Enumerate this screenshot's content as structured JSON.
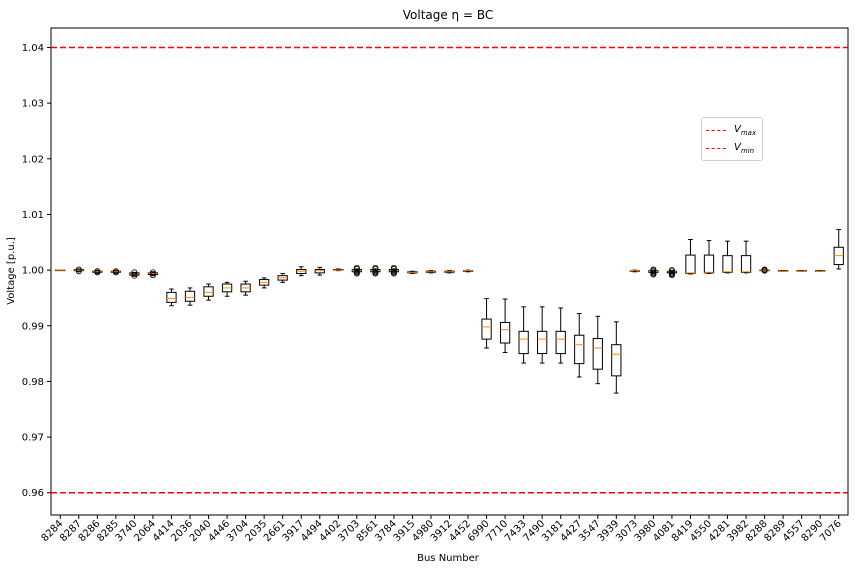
{
  "chart_data": {
    "type": "box",
    "title": "Voltage η = BC",
    "xlabel": "Bus Number",
    "ylabel": "Voltage [p.u.]",
    "ylim": [
      0.956,
      1.0435
    ],
    "yticks": [
      0.96,
      0.97,
      0.98,
      0.99,
      1.0,
      1.01,
      1.02,
      1.03,
      1.04
    ],
    "ytick_labels": [
      "0.96",
      "0.97",
      "0.98",
      "0.99",
      "1.00",
      "1.01",
      "1.02",
      "1.03",
      "1.04"
    ],
    "reference_lines": [
      {
        "name": "V_max",
        "value": 1.04,
        "color": "#ff0000",
        "style": "dashed"
      },
      {
        "name": "V_min",
        "value": 0.96,
        "color": "#ff0000",
        "style": "dashed"
      }
    ],
    "legend": {
      "position": "upper-right",
      "entries": [
        {
          "base": "V",
          "sub": "max"
        },
        {
          "base": "V",
          "sub": "min"
        }
      ]
    },
    "median_color": "#ff8c00",
    "buses": [
      {
        "label": "8284",
        "q1": 1.0,
        "med": 1.0,
        "q3": 1.0,
        "lo": 1.0,
        "hi": 1.0,
        "fliers": []
      },
      {
        "label": "8287",
        "q1": 0.9999,
        "med": 1.0,
        "q3": 1.0001,
        "lo": 0.9998,
        "hi": 1.0002,
        "fliers": [
          0.9998,
          1.0001
        ]
      },
      {
        "label": "8286",
        "q1": 0.9996,
        "med": 0.9997,
        "q3": 0.9998,
        "lo": 0.9995,
        "hi": 0.9999,
        "fliers": [
          0.9996,
          0.9998
        ]
      },
      {
        "label": "8285",
        "q1": 0.9996,
        "med": 0.9997,
        "q3": 0.9998,
        "lo": 0.9995,
        "hi": 0.9999,
        "fliers": [
          0.9996,
          0.9998
        ]
      },
      {
        "label": "3740",
        "q1": 0.9991,
        "med": 0.9993,
        "q3": 0.9995,
        "lo": 0.9989,
        "hi": 0.9996,
        "fliers": [
          0.999,
          0.9996
        ]
      },
      {
        "label": "2064",
        "q1": 0.9992,
        "med": 0.9994,
        "q3": 0.9995,
        "lo": 0.999,
        "hi": 0.9997,
        "fliers": [
          0.9991,
          0.9996
        ]
      },
      {
        "label": "4414",
        "q1": 0.9942,
        "med": 0.9949,
        "q3": 0.996,
        "lo": 0.9936,
        "hi": 0.9966,
        "fliers": []
      },
      {
        "label": "2036",
        "q1": 0.9944,
        "med": 0.9951,
        "q3": 0.9962,
        "lo": 0.9937,
        "hi": 0.9968,
        "fliers": []
      },
      {
        "label": "2040",
        "q1": 0.9953,
        "med": 0.996,
        "q3": 0.997,
        "lo": 0.9946,
        "hi": 0.9975,
        "fliers": []
      },
      {
        "label": "4446",
        "q1": 0.9961,
        "med": 0.9968,
        "q3": 0.9975,
        "lo": 0.9953,
        "hi": 0.9978,
        "fliers": []
      },
      {
        "label": "3704",
        "q1": 0.9961,
        "med": 0.9968,
        "q3": 0.9975,
        "lo": 0.9955,
        "hi": 0.998,
        "fliers": []
      },
      {
        "label": "2035",
        "q1": 0.9973,
        "med": 0.9978,
        "q3": 0.9983,
        "lo": 0.9968,
        "hi": 0.9986,
        "fliers": []
      },
      {
        "label": "2661",
        "q1": 0.9982,
        "med": 0.9986,
        "q3": 0.999,
        "lo": 0.9978,
        "hi": 0.9994,
        "fliers": []
      },
      {
        "label": "3917",
        "q1": 0.9994,
        "med": 0.9998,
        "q3": 1.0001,
        "lo": 0.999,
        "hi": 1.0006,
        "fliers": []
      },
      {
        "label": "4494",
        "q1": 0.9995,
        "med": 0.9999,
        "q3": 1.0001,
        "lo": 0.9991,
        "hi": 1.0005,
        "fliers": []
      },
      {
        "label": "4402",
        "q1": 1.0,
        "med": 1.0,
        "q3": 1.0001,
        "lo": 0.9999,
        "hi": 1.0002,
        "fliers": []
      },
      {
        "label": "3703",
        "q1": 0.9997,
        "med": 0.9999,
        "q3": 1.0001,
        "lo": 0.9996,
        "hi": 1.0002,
        "fliers": [
          0.9994,
          0.9996,
          0.9998,
          1.0002,
          1.0004
        ]
      },
      {
        "label": "8561",
        "q1": 0.9997,
        "med": 0.9999,
        "q3": 1.0001,
        "lo": 0.9996,
        "hi": 1.0002,
        "fliers": [
          0.9994,
          0.9996,
          0.9998,
          1.0002,
          1.0004
        ]
      },
      {
        "label": "3784",
        "q1": 0.9997,
        "med": 0.9999,
        "q3": 1.0001,
        "lo": 0.9996,
        "hi": 1.0002,
        "fliers": [
          0.9994,
          0.9996,
          0.9998,
          1.0002,
          1.0004
        ]
      },
      {
        "label": "3915",
        "q1": 0.9995,
        "med": 0.9996,
        "q3": 0.9997,
        "lo": 0.9994,
        "hi": 0.9998,
        "fliers": []
      },
      {
        "label": "4980",
        "q1": 0.9996,
        "med": 0.9997,
        "q3": 0.9998,
        "lo": 0.9995,
        "hi": 0.9999,
        "fliers": []
      },
      {
        "label": "3912",
        "q1": 0.9996,
        "med": 0.9997,
        "q3": 0.9998,
        "lo": 0.9995,
        "hi": 0.9999,
        "fliers": []
      },
      {
        "label": "4452",
        "q1": 0.9998,
        "med": 0.9999,
        "q3": 0.9999,
        "lo": 0.9997,
        "hi": 1.0,
        "fliers": []
      },
      {
        "label": "6990",
        "q1": 0.9876,
        "med": 0.9898,
        "q3": 0.9912,
        "lo": 0.986,
        "hi": 0.9949,
        "fliers": []
      },
      {
        "label": "7710",
        "q1": 0.9869,
        "med": 0.9893,
        "q3": 0.9906,
        "lo": 0.9852,
        "hi": 0.9948,
        "fliers": []
      },
      {
        "label": "7433",
        "q1": 0.985,
        "med": 0.9876,
        "q3": 0.989,
        "lo": 0.9833,
        "hi": 0.9934,
        "fliers": []
      },
      {
        "label": "7490",
        "q1": 0.985,
        "med": 0.9876,
        "q3": 0.989,
        "lo": 0.9833,
        "hi": 0.9934,
        "fliers": []
      },
      {
        "label": "3181",
        "q1": 0.985,
        "med": 0.9876,
        "q3": 0.989,
        "lo": 0.9833,
        "hi": 0.9932,
        "fliers": []
      },
      {
        "label": "4427",
        "q1": 0.9832,
        "med": 0.9866,
        "q3": 0.9883,
        "lo": 0.9808,
        "hi": 0.9922,
        "fliers": []
      },
      {
        "label": "3547",
        "q1": 0.9822,
        "med": 0.986,
        "q3": 0.9877,
        "lo": 0.9796,
        "hi": 0.9917,
        "fliers": []
      },
      {
        "label": "3939",
        "q1": 0.981,
        "med": 0.9849,
        "q3": 0.9866,
        "lo": 0.9779,
        "hi": 0.9907,
        "fliers": []
      },
      {
        "label": "3073",
        "q1": 0.9998,
        "med": 0.9999,
        "q3": 0.9999,
        "lo": 0.9997,
        "hi": 1.0,
        "fliers": []
      },
      {
        "label": "3980",
        "q1": 0.9996,
        "med": 0.9998,
        "q3": 0.9999,
        "lo": 0.9994,
        "hi": 1.0,
        "fliers": [
          0.9992,
          0.9994,
          0.9996,
          0.9999,
          1.0001
        ]
      },
      {
        "label": "4081",
        "q1": 0.9995,
        "med": 0.9997,
        "q3": 0.9998,
        "lo": 0.9993,
        "hi": 0.9999,
        "fliers": [
          0.9991,
          0.9993,
          0.9995,
          0.9998,
          1.0
        ]
      },
      {
        "label": "8419",
        "q1": 0.9994,
        "med": 0.9995,
        "q3": 1.0027,
        "lo": 0.9993,
        "hi": 1.0055,
        "fliers": []
      },
      {
        "label": "4550",
        "q1": 0.9995,
        "med": 0.9996,
        "q3": 1.0027,
        "lo": 0.9994,
        "hi": 1.0053,
        "fliers": []
      },
      {
        "label": "4281",
        "q1": 0.9996,
        "med": 0.9997,
        "q3": 1.0026,
        "lo": 0.9995,
        "hi": 1.0052,
        "fliers": []
      },
      {
        "label": "3982",
        "q1": 0.9996,
        "med": 0.9997,
        "q3": 1.0026,
        "lo": 0.9995,
        "hi": 1.0052,
        "fliers": []
      },
      {
        "label": "8288",
        "q1": 0.9999,
        "med": 1.0,
        "q3": 1.0,
        "lo": 0.9999,
        "hi": 1.0001,
        "fliers": [
          0.9999,
          1.0,
          1.0001
        ]
      },
      {
        "label": "8289",
        "q1": 0.9998,
        "med": 0.9998,
        "q3": 0.9999,
        "lo": 0.9998,
        "hi": 0.9999,
        "fliers": []
      },
      {
        "label": "4557",
        "q1": 0.9998,
        "med": 0.9998,
        "q3": 0.9999,
        "lo": 0.9998,
        "hi": 0.9999,
        "fliers": []
      },
      {
        "label": "8290",
        "q1": 0.9998,
        "med": 0.9998,
        "q3": 0.9999,
        "lo": 0.9998,
        "hi": 0.9999,
        "fliers": []
      },
      {
        "label": "7076",
        "q1": 1.001,
        "med": 1.0026,
        "q3": 1.0041,
        "lo": 1.0002,
        "hi": 1.0073,
        "fliers": []
      }
    ]
  }
}
